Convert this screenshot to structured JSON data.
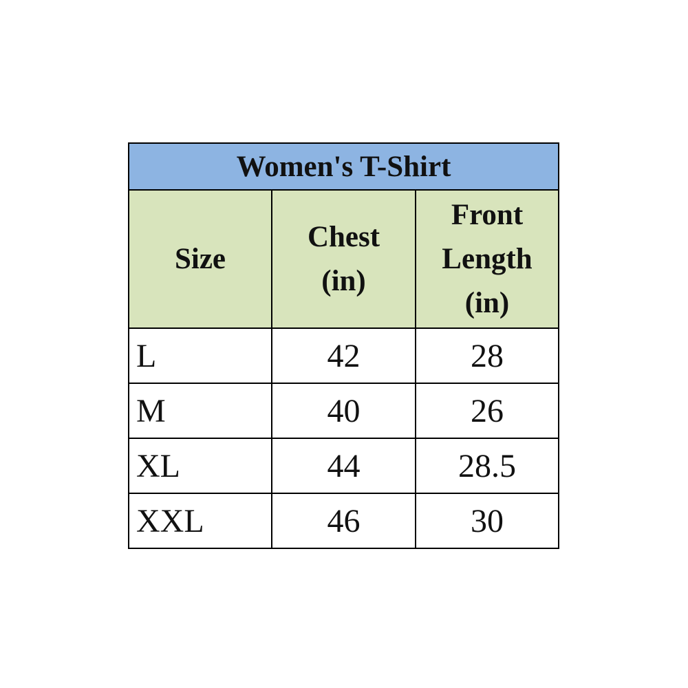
{
  "table": {
    "title": "Women's T-Shirt",
    "header_color": "#8db4e2",
    "subheader_color": "#d8e4bc",
    "columns": [
      {
        "line1": "Size",
        "line2": "",
        "line3": ""
      },
      {
        "line1": "Chest",
        "line2": "(in)",
        "line3": ""
      },
      {
        "line1": "Front",
        "line2": "Length",
        "line3": "(in)"
      }
    ],
    "rows": [
      [
        "L",
        "42",
        "28"
      ],
      [
        "M",
        "40",
        "26"
      ],
      [
        "XL",
        "44",
        "28.5"
      ],
      [
        "XXL",
        "46",
        "30"
      ]
    ]
  }
}
